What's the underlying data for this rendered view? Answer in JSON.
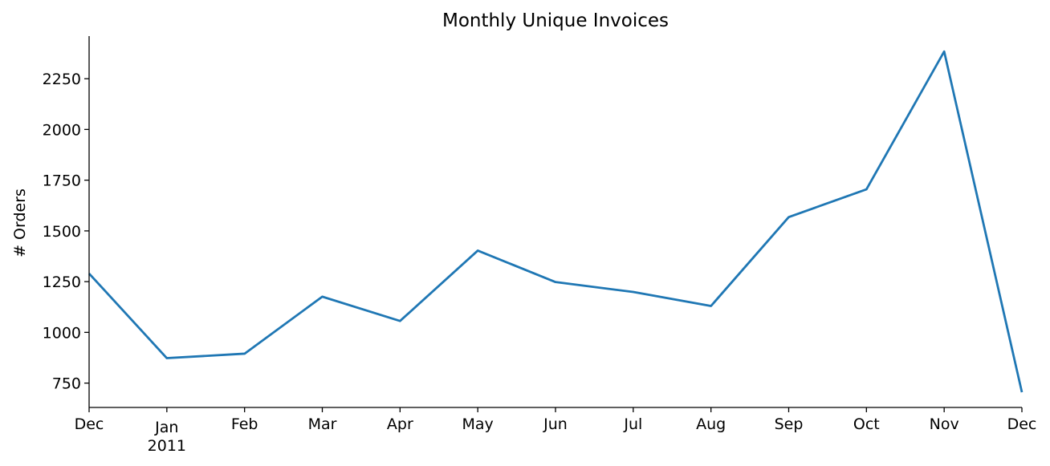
{
  "chart_data": {
    "type": "line",
    "title": "Monthly Unique Invoices",
    "xlabel": "",
    "ylabel": "# Orders",
    "x": [
      "2010-12",
      "2011-01",
      "2011-02",
      "2011-03",
      "2011-04",
      "2011-05",
      "2011-06",
      "2011-07",
      "2011-08",
      "2011-09",
      "2011-10",
      "2011-11",
      "2011-12"
    ],
    "x_tick_labels": [
      {
        "label": "Dec",
        "sub": ""
      },
      {
        "label": "Jan",
        "sub": "2011"
      },
      {
        "label": "Feb",
        "sub": ""
      },
      {
        "label": "Mar",
        "sub": ""
      },
      {
        "label": "Apr",
        "sub": ""
      },
      {
        "label": "May",
        "sub": ""
      },
      {
        "label": "Jun",
        "sub": ""
      },
      {
        "label": "Jul",
        "sub": ""
      },
      {
        "label": "Aug",
        "sub": ""
      },
      {
        "label": "Sep",
        "sub": ""
      },
      {
        "label": "Oct",
        "sub": ""
      },
      {
        "label": "Nov",
        "sub": ""
      },
      {
        "label": "Dec",
        "sub": ""
      }
    ],
    "series": [
      {
        "values": [
          1290,
          873,
          895,
          1176,
          1056,
          1403,
          1248,
          1199,
          1130,
          1568,
          1705,
          2384,
          705
        ],
        "color": "#1f77b4"
      }
    ],
    "yticks": [
      750,
      1000,
      1250,
      1500,
      1750,
      2000,
      2250
    ],
    "ylim": [
      630,
      2460
    ],
    "grid": false,
    "spines": [
      "left",
      "bottom"
    ]
  }
}
